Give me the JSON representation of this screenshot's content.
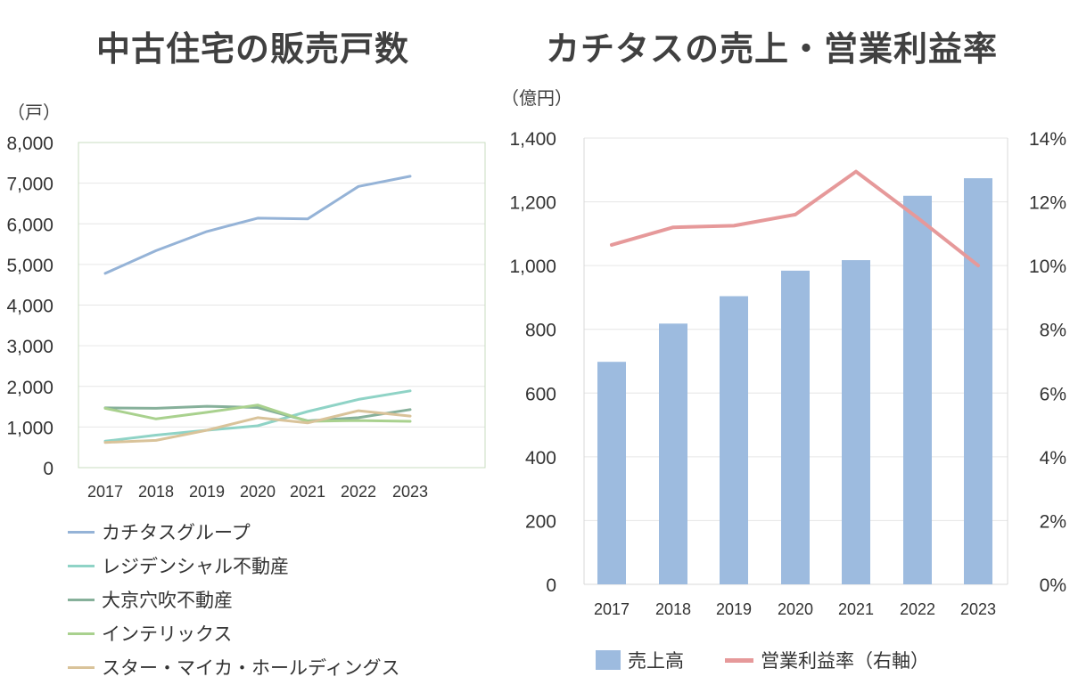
{
  "chart_data": [
    {
      "type": "line",
      "title": "中古住宅の販売戸数",
      "unit_label": "（戸）",
      "categories": [
        "2017",
        "2018",
        "2019",
        "2020",
        "2021",
        "2022",
        "2023"
      ],
      "ylim": [
        0,
        8000
      ],
      "yticks": [
        "0",
        "1,000",
        "2,000",
        "3,000",
        "4,000",
        "5,000",
        "6,000",
        "7,000",
        "8,000"
      ],
      "legend_position": "bottom",
      "series": [
        {
          "name": "カチタスグループ",
          "color": "#95b3d7",
          "values": [
            4780,
            5340,
            5810,
            6140,
            6120,
            6920,
            7170
          ]
        },
        {
          "name": "レジデンシャル不動産",
          "color": "#8fd3c6",
          "values": [
            650,
            800,
            920,
            1030,
            1380,
            1680,
            1890
          ]
        },
        {
          "name": "大京穴吹不動産",
          "color": "#86b09a",
          "values": [
            1470,
            1460,
            1510,
            1480,
            1150,
            1230,
            1430
          ]
        },
        {
          "name": "インテリックス",
          "color": "#a9d18e",
          "values": [
            1460,
            1200,
            1360,
            1540,
            1140,
            1160,
            1140
          ]
        },
        {
          "name": "スター・マイカ・ホールディングス",
          "color": "#d9c39a",
          "values": [
            620,
            670,
            920,
            1230,
            1100,
            1400,
            1270
          ]
        }
      ]
    },
    {
      "type": "bar+line",
      "title": "カチタスの売上・営業利益率",
      "unit_label": "（億円）",
      "categories": [
        "2017",
        "2018",
        "2019",
        "2020",
        "2021",
        "2022",
        "2023"
      ],
      "ylim": [
        0,
        1400
      ],
      "yticks": [
        "0",
        "200",
        "400",
        "600",
        "800",
        "1,000",
        "1,200",
        "1,400"
      ],
      "y2lim": [
        0,
        14
      ],
      "y2ticks": [
        "0%",
        "2%",
        "4%",
        "6%",
        "8%",
        "10%",
        "12%",
        "14%"
      ],
      "legend_position": "bottom",
      "bar_series": {
        "name": "売上高",
        "color": "#9dbbdf",
        "values": [
          698,
          818,
          904,
          984,
          1017,
          1219,
          1274
        ]
      },
      "line_series": {
        "name": "営業利益率（右軸）",
        "color": "#e6999a",
        "values": [
          10.65,
          11.2,
          11.25,
          11.6,
          12.95,
          11.5,
          10.0
        ]
      }
    }
  ]
}
